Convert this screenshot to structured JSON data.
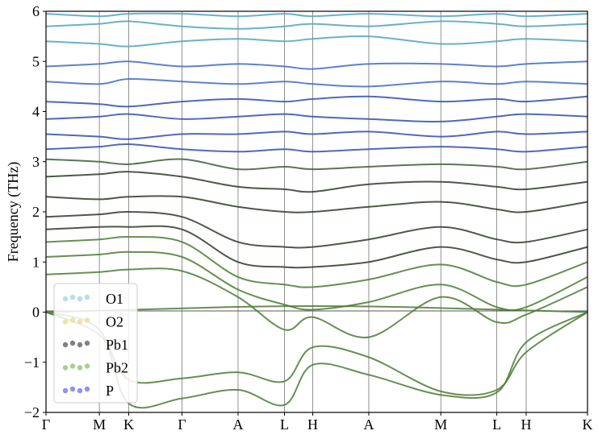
{
  "chart_data": {
    "type": "line",
    "title": "",
    "xlabel": "",
    "ylabel": "Frequency (THz)",
    "ylim": [
      -2,
      6
    ],
    "y_ticks": [
      "−2",
      "−1",
      "0",
      "1",
      "2",
      "3",
      "4",
      "5",
      "6"
    ],
    "y_tick_values": [
      -2,
      -1,
      0,
      1,
      2,
      3,
      4,
      5,
      6
    ],
    "x_ticks": [
      "Γ",
      "M",
      "K",
      "Γ",
      "A",
      "L",
      "H",
      "A",
      "M",
      "L",
      "H",
      "K"
    ],
    "x_tick_positions": [
      0,
      1,
      1.55,
      2.55,
      3.6,
      4.47,
      5,
      6.05,
      7.4,
      8.45,
      9,
      10.15
    ],
    "x_range": [
      0,
      10.15
    ],
    "grid": "vertical lines at high-symmetry points",
    "legend": {
      "placement": "lower-left",
      "entries": [
        {
          "label": "O1",
          "color": "#9fd3dd"
        },
        {
          "label": "O2",
          "color": "#e6dc8a"
        },
        {
          "label": "Pb1",
          "color": "#555555"
        },
        {
          "label": "Pb2",
          "color": "#8fbb6e"
        },
        {
          "label": "P",
          "color": "#6b6bf0"
        }
      ]
    },
    "series": [
      {
        "values": [
          0,
          0.05,
          0.1,
          0.12,
          0.1,
          0.05,
          0
        ]
      },
      {
        "values": [
          0,
          -0.45,
          -1.35,
          -1.32,
          -1.2,
          -1.38,
          -0.7,
          -0.9,
          -1.58,
          -1.55,
          -0.8,
          0
        ]
      },
      {
        "values": [
          0,
          -0.35,
          -1.82,
          -1.72,
          -1.55,
          -1.85,
          -1.05,
          -1.25,
          -1.65,
          -1.6,
          -0.6,
          0
        ]
      },
      {
        "values": [
          0.75,
          0.8,
          0.85,
          0.82,
          0.3,
          -0.35,
          -0.1,
          -0.5,
          0.3,
          -0.2,
          -0.05,
          0.5
        ]
      },
      {
        "values": [
          1.1,
          1.15,
          1.2,
          1.1,
          0.45,
          0.15,
          0.05,
          0.2,
          0.55,
          0.1,
          0.1,
          0.7
        ]
      },
      {
        "values": [
          1.4,
          1.45,
          1.5,
          1.4,
          0.7,
          0.55,
          0.5,
          0.65,
          0.95,
          0.6,
          0.55,
          1.0
        ]
      },
      {
        "values": [
          1.65,
          1.7,
          1.7,
          1.65,
          1.0,
          0.9,
          0.9,
          1.0,
          1.3,
          1.05,
          1.0,
          1.3
        ]
      },
      {
        "values": [
          1.9,
          1.95,
          2.0,
          1.9,
          1.4,
          1.3,
          1.3,
          1.45,
          1.7,
          1.45,
          1.4,
          1.65
        ]
      },
      {
        "values": [
          2.3,
          2.25,
          2.3,
          2.3,
          2.1,
          2.0,
          2.0,
          2.1,
          2.2,
          2.05,
          2.0,
          2.2
        ]
      },
      {
        "values": [
          2.7,
          2.75,
          2.8,
          2.7,
          2.5,
          2.45,
          2.4,
          2.55,
          2.6,
          2.5,
          2.45,
          2.6
        ]
      },
      {
        "values": [
          3.05,
          3.0,
          2.95,
          3.05,
          2.85,
          2.9,
          2.85,
          2.9,
          2.95,
          2.9,
          2.85,
          3.0
        ]
      },
      {
        "values": [
          3.25,
          3.3,
          3.35,
          3.25,
          3.2,
          3.25,
          3.2,
          3.25,
          3.3,
          3.25,
          3.2,
          3.3
        ]
      },
      {
        "values": [
          3.55,
          3.5,
          3.45,
          3.55,
          3.55,
          3.6,
          3.55,
          3.6,
          3.5,
          3.6,
          3.55,
          3.6
        ]
      },
      {
        "values": [
          3.85,
          3.9,
          3.95,
          3.85,
          3.9,
          3.95,
          3.9,
          3.85,
          3.8,
          3.9,
          3.95,
          3.9
        ]
      },
      {
        "values": [
          4.2,
          4.15,
          4.1,
          4.2,
          4.25,
          4.2,
          4.25,
          4.3,
          4.2,
          4.25,
          4.2,
          4.3
        ]
      },
      {
        "values": [
          4.6,
          4.55,
          4.65,
          4.6,
          4.55,
          4.6,
          4.55,
          4.5,
          4.6,
          4.55,
          4.6,
          4.55
        ]
      },
      {
        "values": [
          4.9,
          4.95,
          5.0,
          4.9,
          4.95,
          4.9,
          4.85,
          4.95,
          4.95,
          4.9,
          4.95,
          5.0
        ]
      },
      {
        "values": [
          5.4,
          5.35,
          5.3,
          5.4,
          5.45,
          5.4,
          5.45,
          5.5,
          5.35,
          5.4,
          5.45,
          5.4
        ]
      },
      {
        "values": [
          5.7,
          5.75,
          5.8,
          5.7,
          5.65,
          5.7,
          5.75,
          5.7,
          5.8,
          5.75,
          5.7,
          5.75
        ]
      },
      {
        "values": [
          5.95,
          5.9,
          5.95,
          5.95,
          5.9,
          5.95,
          5.9,
          5.95,
          5.9,
          5.95,
          5.9,
          5.95
        ]
      }
    ]
  }
}
